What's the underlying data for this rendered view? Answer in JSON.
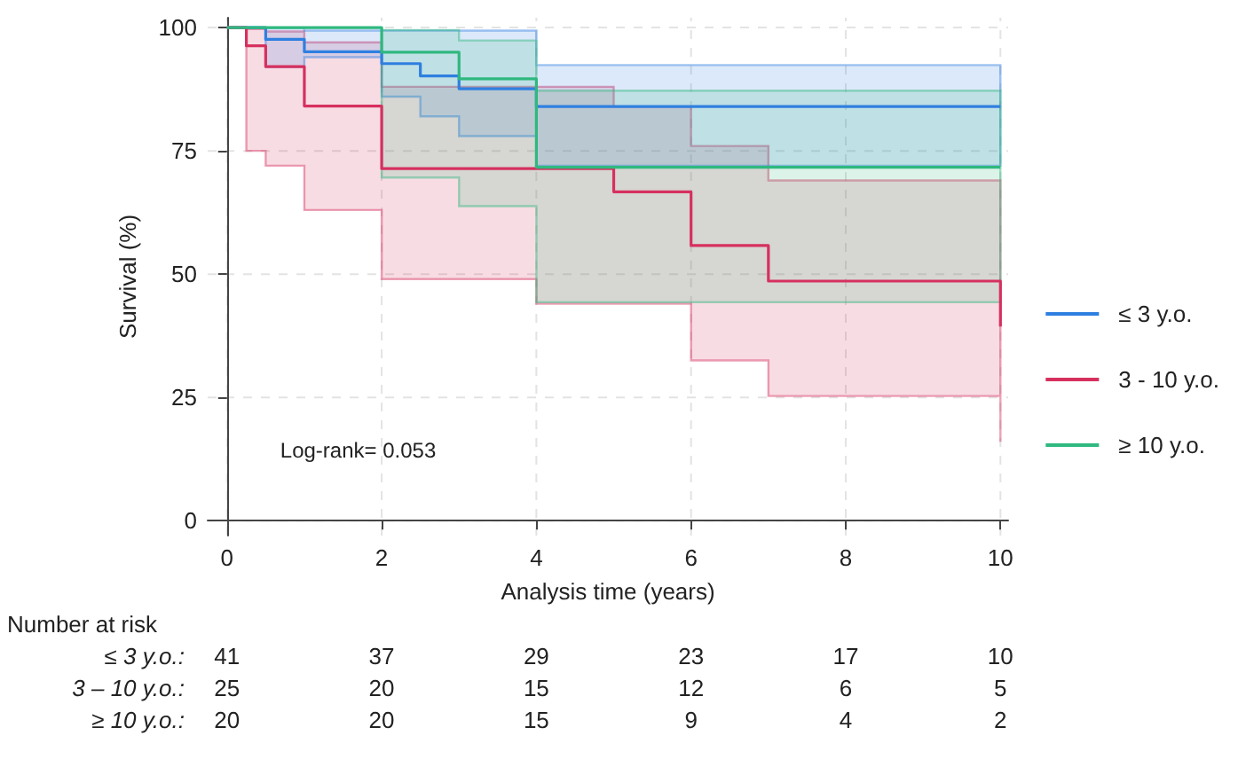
{
  "chart_data": {
    "type": "step",
    "xlabel": "Analysis time (years)",
    "ylabel": "Survival (%)",
    "xlim": [
      -0.25,
      10.1
    ],
    "ylim": [
      -3,
      102
    ],
    "xticks": [
      0,
      2,
      4,
      6,
      8,
      10
    ],
    "yticks": [
      0,
      25,
      50,
      75,
      100
    ],
    "grid": true,
    "legend": "right",
    "series": [
      {
        "name": "≤ 3 y.o.",
        "color": "#2f7fe0",
        "x": [
          0,
          0.5,
          1,
          2,
          2.5,
          3,
          4,
          10
        ],
        "values": [
          100,
          97.6,
          95.1,
          92.7,
          90.2,
          87.6,
          84,
          84
        ],
        "lower": [
          100,
          92,
          94,
          86,
          82,
          78,
          72,
          72
        ],
        "upper": [
          100,
          100,
          99.4,
          99.4,
          99.4,
          99.4,
          92.4,
          92.4
        ]
      },
      {
        "name": "3 - 10 y.o.",
        "color": "#d6305f",
        "x": [
          0,
          0.25,
          0.5,
          1,
          2,
          4,
          5,
          6,
          7,
          10
        ],
        "values": [
          100,
          96.3,
          92.1,
          84.1,
          71.4,
          71.4,
          66.7,
          55.8,
          48.6,
          39.4
        ],
        "lower": [
          100,
          75,
          72,
          63,
          49,
          44,
          44,
          32.5,
          25.3,
          16
        ],
        "upper": [
          100,
          99.7,
          99.2,
          97,
          88,
          88,
          84,
          76,
          69,
          68
        ]
      },
      {
        "name": "≥ 10 y.o.",
        "color": "#2fb87f",
        "x": [
          0,
          2,
          3,
          4,
          10
        ],
        "values": [
          100,
          95,
          89.6,
          71.7,
          71.7
        ],
        "lower": [
          100,
          69.6,
          63.8,
          44.3,
          44.3
        ],
        "upper": [
          100,
          99.5,
          97.4,
          87.2,
          87.2
        ]
      }
    ],
    "annotations": [
      "Log-rank= 0.053",
      "Number at risk",
      "≤ 3 y.o.:",
      "41",
      "37",
      "29",
      "23",
      "17",
      "10",
      "3 – 10 y.o.:",
      "25",
      "20",
      "15",
      "12",
      "6",
      "5",
      "≥ 10 y.o.:",
      "20",
      "20",
      "15",
      "9",
      "4",
      "2"
    ]
  }
}
